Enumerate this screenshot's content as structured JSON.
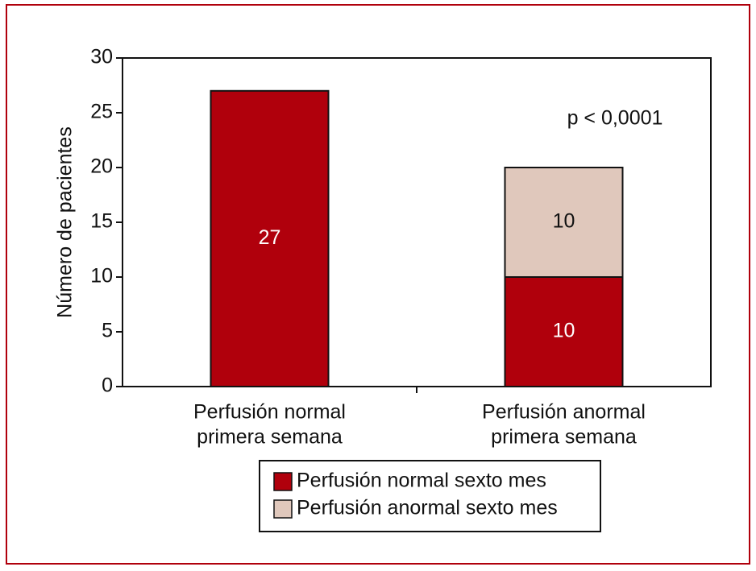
{
  "chart_data": {
    "type": "stacked-bar",
    "y_label": "Número de pacientes",
    "categories": [
      [
        "Perfusión normal",
        "primera semana"
      ],
      [
        "Perfusión anormal",
        "primera semana"
      ]
    ],
    "series": [
      {
        "name": "Perfusión normal sexto mes",
        "color": "#b0000c",
        "label_color": "#ffffff",
        "values": [
          27,
          10
        ]
      },
      {
        "name": "Perfusión anormal sexto mes",
        "color": "#e0c8bc",
        "label_color": "#111111",
        "values": [
          null,
          10
        ]
      }
    ],
    "annotation": "p < 0,0001",
    "ylim": [
      0,
      30
    ],
    "yticks": [
      0,
      5,
      10,
      15,
      20,
      25,
      30
    ]
  }
}
